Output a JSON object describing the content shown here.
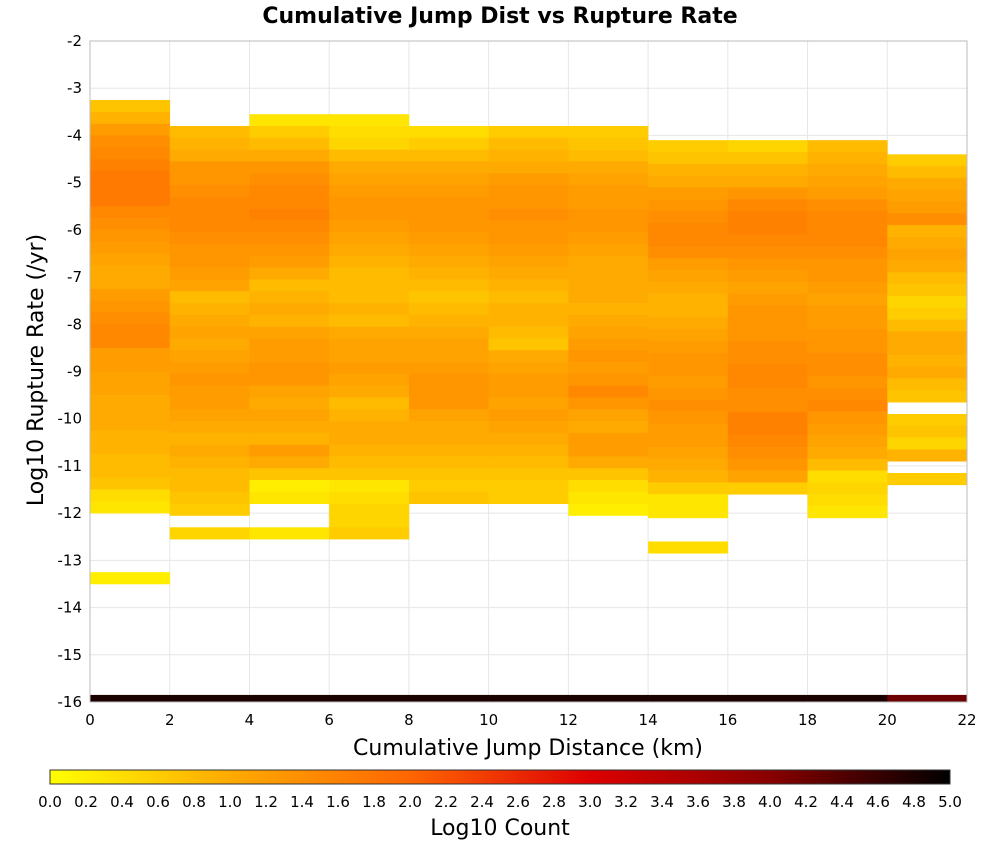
{
  "chart_data": {
    "type": "heatmap",
    "title": "Cumulative Jump Dist vs Rupture Rate",
    "xlabel": "Cumulative Jump Distance (km)",
    "ylabel": "Log10 Rupture Rate (/yr)",
    "xlim": [
      0,
      22
    ],
    "ylim": [
      -16,
      -2
    ],
    "x_ticks": [
      "0",
      "2",
      "4",
      "6",
      "8",
      "10",
      "12",
      "14",
      "16",
      "18",
      "20",
      "22"
    ],
    "y_ticks": [
      "-2",
      "-3",
      "-4",
      "-5",
      "-6",
      "-7",
      "-8",
      "-9",
      "-10",
      "-11",
      "-12",
      "-13",
      "-14",
      "-15",
      "-16"
    ],
    "grid": true,
    "x_bin_width": 2,
    "y_bin_height": 0.25,
    "colorbar": {
      "label": "Log10 Count",
      "range": [
        0,
        5
      ],
      "ticks": [
        "0.0",
        "0.2",
        "0.4",
        "0.6",
        "0.8",
        "1.0",
        "1.2",
        "1.4",
        "1.6",
        "1.8",
        "2.0",
        "2.2",
        "2.4",
        "2.6",
        "2.8",
        "3.0",
        "3.2",
        "3.4",
        "3.6",
        "3.8",
        "4.0",
        "4.2",
        "4.4",
        "4.6",
        "4.8",
        "5.0"
      ],
      "colormap": [
        "#ffff00",
        "#ffaa00",
        "#ff6600",
        "#dd0000",
        "#880000",
        "#000000"
      ]
    },
    "columns": [
      {
        "x_start": 0,
        "y_top": -3.25,
        "values": [
          0.7,
          0.9,
          1.2,
          1.4,
          1.5,
          1.6,
          1.7,
          1.7,
          1.7,
          1.5,
          1.4,
          1.3,
          1.2,
          1.1,
          1.0,
          1.0,
          1.2,
          1.3,
          1.4,
          1.5,
          1.5,
          1.2,
          1.2,
          1.1,
          1.1,
          1.0,
          1.0,
          1.0,
          0.9,
          0.9,
          0.8,
          0.8,
          0.7,
          0.4,
          0.3,
          null,
          null,
          null,
          null,
          null,
          0.2
        ],
        "extra": [
          {
            "y": -16,
            "value": 4.8
          }
        ]
      },
      {
        "x_start": 2,
        "y_top": -3.8,
        "values": [
          0.8,
          0.9,
          1.0,
          1.3,
          1.3,
          1.4,
          1.5,
          1.5,
          1.5,
          1.4,
          1.3,
          1.3,
          1.2,
          1.1,
          0.8,
          0.9,
          1.0,
          1.1,
          1.0,
          1.1,
          1.2,
          1.3,
          1.2,
          1.2,
          1.1,
          1.0,
          0.9,
          1.0,
          0.9,
          0.8,
          0.8,
          0.7,
          0.6,
          null,
          0.5
        ],
        "extra": [
          {
            "y": -16,
            "value": 4.8
          }
        ]
      },
      {
        "x_start": 4,
        "y_top": -3.55,
        "values": [
          0.3,
          0.6,
          0.8,
          1.0,
          1.3,
          1.4,
          1.5,
          1.5,
          1.6,
          1.5,
          1.4,
          1.3,
          1.2,
          1.0,
          0.8,
          0.9,
          1.0,
          0.9,
          1.1,
          1.2,
          1.2,
          1.3,
          1.3,
          1.1,
          1.0,
          1.1,
          1.0,
          0.9,
          1.2,
          1.0,
          0.7,
          0.2,
          0.3,
          null,
          null,
          0.3
        ],
        "extra": [
          {
            "y": -16,
            "value": 4.8
          }
        ]
      },
      {
        "x_start": 6,
        "y_top": -3.55,
        "values": [
          0.3,
          0.4,
          0.5,
          0.8,
          1.0,
          1.1,
          1.2,
          1.3,
          1.3,
          1.2,
          1.1,
          1.0,
          0.9,
          0.8,
          0.8,
          0.8,
          0.9,
          0.8,
          1.0,
          1.1,
          1.1,
          1.2,
          1.1,
          1.0,
          0.8,
          0.9,
          1.0,
          1.0,
          0.9,
          0.8,
          0.7,
          0.3,
          0.4,
          0.5,
          0.5,
          0.6
        ],
        "extra": [
          {
            "y": -16,
            "value": 4.8
          }
        ]
      },
      {
        "x_start": 8,
        "y_top": -3.8,
        "values": [
          0.4,
          0.6,
          0.8,
          1.0,
          1.1,
          1.2,
          1.3,
          1.3,
          1.3,
          1.2,
          1.1,
          1.0,
          0.9,
          0.8,
          0.7,
          0.8,
          0.9,
          1.0,
          1.1,
          1.1,
          1.2,
          1.3,
          1.3,
          1.3,
          1.1,
          1.0,
          1.0,
          0.9,
          0.8,
          0.7,
          0.6,
          0.7
        ],
        "extra": [
          {
            "y": -16,
            "value": 4.8
          }
        ]
      },
      {
        "x_start": 10,
        "y_top": -3.8,
        "values": [
          0.6,
          0.8,
          0.9,
          1.0,
          1.2,
          1.3,
          1.3,
          1.4,
          1.3,
          1.3,
          1.2,
          1.1,
          1.0,
          0.9,
          0.8,
          0.9,
          0.9,
          0.8,
          0.7,
          1.0,
          1.1,
          1.2,
          1.2,
          1.1,
          1.2,
          1.1,
          1.0,
          0.9,
          0.8,
          0.7,
          0.6,
          0.6
        ],
        "extra": [
          {
            "y": -16,
            "value": 4.8
          }
        ]
      },
      {
        "x_start": 12,
        "y_top": -3.8,
        "values": [
          0.6,
          0.7,
          0.8,
          1.0,
          1.1,
          1.2,
          1.2,
          1.3,
          1.3,
          1.2,
          1.1,
          1.0,
          1.0,
          1.0,
          1.0,
          0.9,
          1.0,
          1.1,
          1.2,
          1.3,
          1.2,
          1.3,
          1.5,
          1.3,
          1.1,
          1.0,
          1.2,
          1.2,
          1.0,
          0.7,
          0.4,
          0.3,
          0.2
        ],
        "extra": [
          {
            "y": -16,
            "value": 4.8
          }
        ]
      },
      {
        "x_start": 14,
        "y_top": -4.1,
        "values": [
          0.6,
          0.7,
          0.9,
          1.0,
          1.2,
          1.3,
          1.4,
          1.5,
          1.5,
          1.4,
          1.2,
          1.1,
          1.0,
          0.9,
          0.9,
          1.0,
          1.1,
          1.2,
          1.3,
          1.3,
          1.2,
          1.3,
          1.4,
          1.3,
          1.2,
          1.2,
          1.1,
          1.0,
          0.9,
          0.6,
          0.3,
          0.3,
          null,
          null,
          0.4
        ],
        "extra": [
          {
            "y": -16,
            "value": 4.8
          }
        ]
      },
      {
        "x_start": 16,
        "y_top": -4.1,
        "values": [
          0.5,
          0.7,
          0.9,
          1.0,
          1.3,
          1.5,
          1.6,
          1.6,
          1.5,
          1.4,
          1.3,
          1.2,
          1.1,
          1.2,
          1.3,
          1.3,
          1.3,
          1.4,
          1.4,
          1.5,
          1.5,
          1.4,
          1.4,
          1.6,
          1.6,
          1.5,
          1.4,
          1.3,
          1.1,
          0.6
        ],
        "extra": [
          {
            "y": -16,
            "value": 4.8
          }
        ]
      },
      {
        "x_start": 18,
        "y_top": -4.1,
        "values": [
          0.8,
          0.9,
          1.0,
          1.1,
          1.2,
          1.4,
          1.5,
          1.5,
          1.5,
          1.4,
          1.3,
          1.3,
          1.2,
          1.1,
          1.2,
          1.2,
          1.3,
          1.3,
          1.4,
          1.4,
          1.3,
          1.4,
          1.5,
          1.3,
          1.2,
          1.1,
          1.0,
          0.8,
          0.4,
          0.5,
          0.4,
          0.3
        ],
        "extra": [
          {
            "y": -16,
            "value": 4.8
          }
        ]
      },
      {
        "x_start": 20,
        "y_top": -4.4,
        "values": [
          0.6,
          0.8,
          1.0,
          1.1,
          1.2,
          1.4,
          0.9,
          1.0,
          1.1,
          1.0,
          0.8,
          0.7,
          0.5,
          0.6,
          0.8,
          1.0,
          1.0,
          0.9,
          1.0,
          0.8,
          0.7,
          null,
          0.6,
          0.7,
          0.5,
          0.9,
          null,
          0.6
        ],
        "extra": [
          {
            "y": -16,
            "value": 4.2
          }
        ]
      }
    ]
  }
}
